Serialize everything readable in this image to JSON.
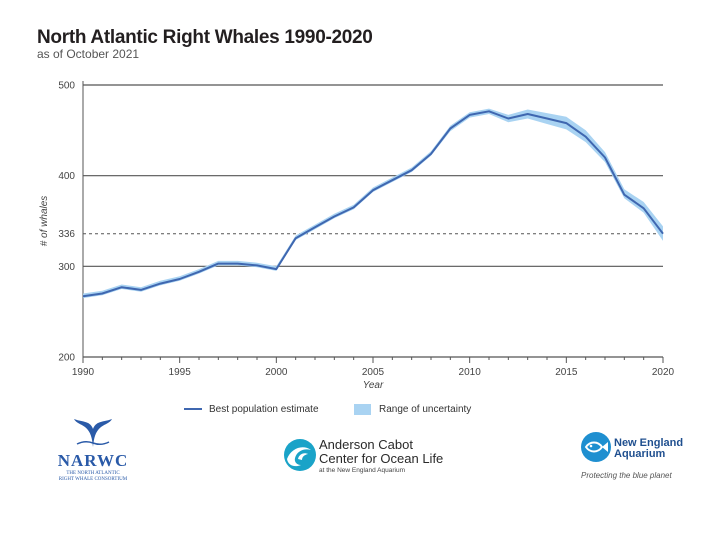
{
  "chart_data": {
    "type": "line",
    "title": "North Atlantic Right Whales 1990-2020",
    "subtitle": "as of October 2021",
    "xlabel": "Year",
    "ylabel": "# of whales",
    "xlim": [
      1990,
      2020
    ],
    "ylim": [
      200,
      500
    ],
    "x_ticks": [
      1990,
      1995,
      2000,
      2005,
      2010,
      2015,
      2020
    ],
    "y_ticks": [
      200,
      300,
      336,
      400,
      500
    ],
    "gridlines": [
      300,
      400,
      500
    ],
    "reference_line": {
      "value": 336,
      "style": "dashed"
    },
    "x": [
      1990,
      1991,
      1992,
      1993,
      1994,
      1995,
      1996,
      1997,
      1998,
      1999,
      2000,
      2001,
      2002,
      2003,
      2004,
      2005,
      2006,
      2007,
      2008,
      2009,
      2010,
      2011,
      2012,
      2013,
      2014,
      2015,
      2016,
      2017,
      2018,
      2019,
      2020
    ],
    "series": [
      {
        "name": "Best population estimate",
        "values": [
          267,
          270,
          277,
          274,
          281,
          286,
          294,
          303,
          303,
          301,
          297,
          331,
          343,
          355,
          365,
          384,
          395,
          406,
          424,
          452,
          467,
          471,
          463,
          468,
          463,
          458,
          443,
          420,
          379,
          364,
          336
        ]
      }
    ],
    "uncertainty": {
      "name": "Range of uncertainty",
      "low": [
        265,
        268,
        275,
        272,
        279,
        284,
        292,
        301,
        301,
        299,
        295,
        329,
        341,
        353,
        363,
        382,
        393,
        404,
        422,
        449,
        464,
        468,
        459,
        463,
        457,
        451,
        437,
        415,
        375,
        359,
        328
      ],
      "high": [
        270,
        273,
        280,
        277,
        284,
        289,
        297,
        306,
        306,
        304,
        300,
        334,
        346,
        358,
        368,
        387,
        398,
        409,
        427,
        455,
        470,
        474,
        467,
        473,
        469,
        465,
        450,
        426,
        385,
        371,
        344
      ]
    },
    "legend_placement": "bottom",
    "colors": {
      "line": "#3f67b0",
      "band": "#a9d3f2",
      "grid": "#555555"
    }
  },
  "legend": {
    "line_label": "Best population estimate",
    "band_label": "Range of uncertainty"
  },
  "logos": {
    "narwc": {
      "name": "NARWC",
      "tagline_1": "The North Atlantic",
      "tagline_2": "Right Whale Consortium"
    },
    "anderson_cabot": {
      "line1": "Anderson Cabot",
      "line2": "Center for Ocean Life",
      "line3": "at the New England Aquarium"
    },
    "nea": {
      "line1": "New England",
      "line2": "Aquarium",
      "tagline": "Protecting the blue planet"
    }
  }
}
